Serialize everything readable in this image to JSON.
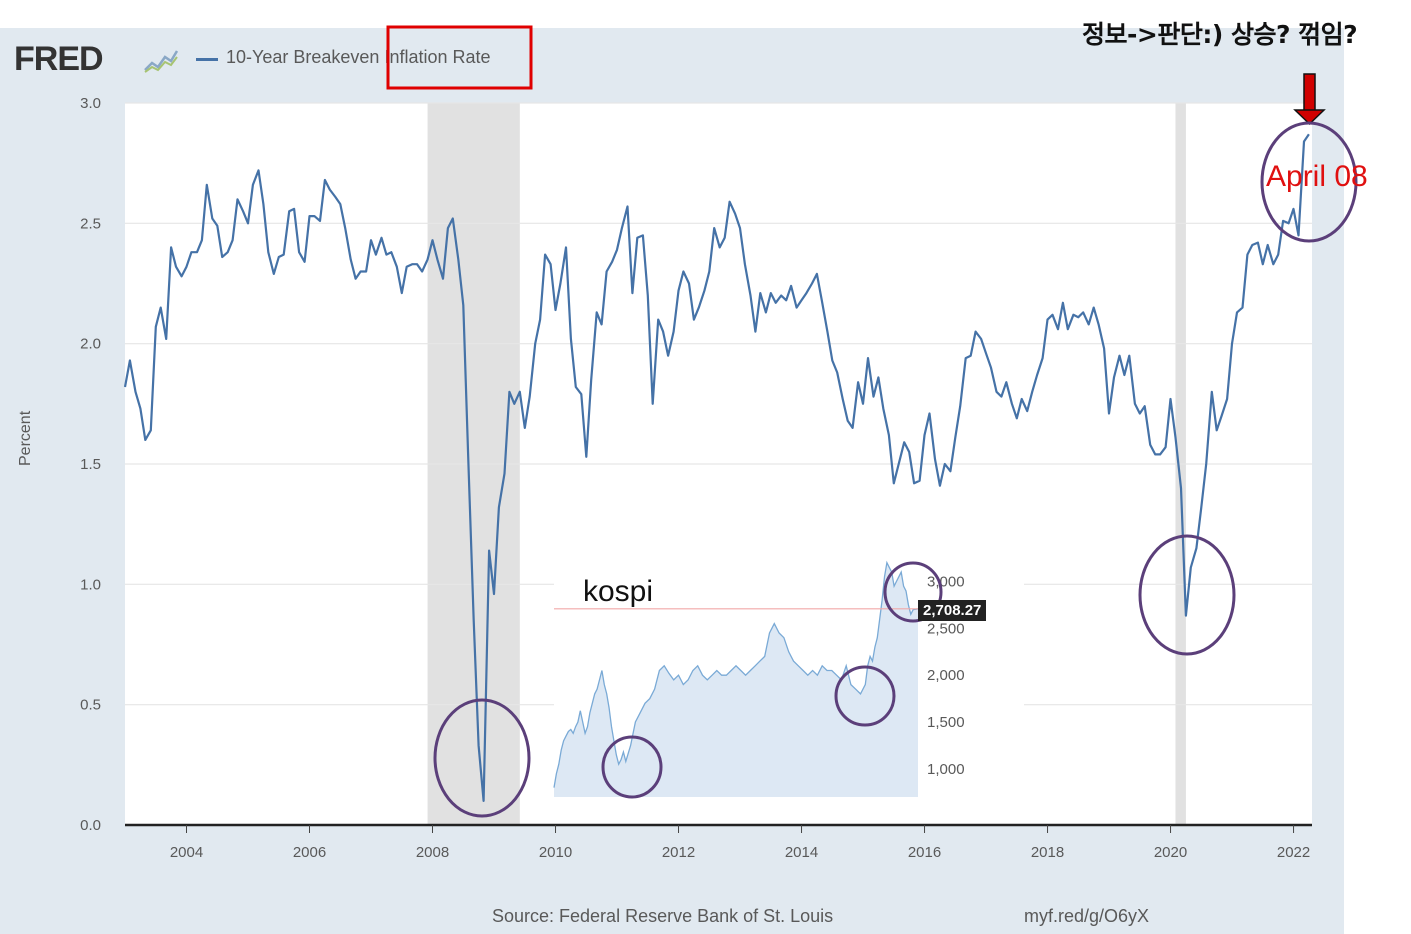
{
  "header": {
    "logo": "FRED",
    "legend_label": "10-Year Breakeven Inflation Rate"
  },
  "annotations": {
    "top_question": "정보->판단:) 상승? 꺾임?",
    "april_label": "April 08",
    "kospi_label": "kospi",
    "kospi_value": "2,708.27"
  },
  "footer": {
    "source": "Source: Federal Reserve Bank of St. Louis",
    "url": "myf.red/g/O6yX"
  },
  "colors": {
    "line": "#4572a7",
    "recession": "#e1e1e1",
    "highlight_box": "#e00000",
    "circles": "#5b3f7a",
    "arrow": "#d00000"
  },
  "chart_data": [
    {
      "type": "line",
      "xlabel": "",
      "ylabel": "Percent",
      "ylim": [
        0.0,
        3.0
      ],
      "xlim": [
        2003.0,
        2022.3
      ],
      "y_ticks": [
        "0.0",
        "0.5",
        "1.0",
        "1.5",
        "2.0",
        "2.5",
        "3.0"
      ],
      "x_ticks": [
        "2004",
        "2006",
        "2008",
        "2010",
        "2012",
        "2014",
        "2016",
        "2018",
        "2020",
        "2022"
      ],
      "recessions": [
        [
          2007.92,
          2009.42
        ],
        [
          2020.08,
          2020.25
        ]
      ],
      "grid": true,
      "series": [
        {
          "name": "10-Year Breakeven Inflation Rate",
          "x": [
            2003.0,
            2003.08,
            2003.17,
            2003.25,
            2003.33,
            2003.42,
            2003.5,
            2003.58,
            2003.67,
            2003.75,
            2003.83,
            2003.92,
            2004.0,
            2004.08,
            2004.17,
            2004.25,
            2004.33,
            2004.42,
            2004.5,
            2004.58,
            2004.67,
            2004.75,
            2004.83,
            2004.92,
            2005.0,
            2005.08,
            2005.17,
            2005.25,
            2005.33,
            2005.42,
            2005.5,
            2005.58,
            2005.67,
            2005.75,
            2005.83,
            2005.92,
            2006.0,
            2006.08,
            2006.17,
            2006.25,
            2006.33,
            2006.42,
            2006.5,
            2006.58,
            2006.67,
            2006.75,
            2006.83,
            2006.92,
            2007.0,
            2007.08,
            2007.17,
            2007.25,
            2007.33,
            2007.42,
            2007.5,
            2007.58,
            2007.67,
            2007.75,
            2007.83,
            2007.92,
            2008.0,
            2008.08,
            2008.17,
            2008.25,
            2008.33,
            2008.42,
            2008.5,
            2008.58,
            2008.67,
            2008.75,
            2008.83,
            2008.92,
            2009.0,
            2009.08,
            2009.17,
            2009.25,
            2009.33,
            2009.42,
            2009.5,
            2009.58,
            2009.67,
            2009.75,
            2009.83,
            2009.92,
            2010.0,
            2010.08,
            2010.17,
            2010.25,
            2010.33,
            2010.42,
            2010.5,
            2010.58,
            2010.67,
            2010.75,
            2010.83,
            2010.92,
            2011.0,
            2011.08,
            2011.17,
            2011.25,
            2011.33,
            2011.42,
            2011.5,
            2011.58,
            2011.67,
            2011.75,
            2011.83,
            2011.92,
            2012.0,
            2012.08,
            2012.17,
            2012.25,
            2012.33,
            2012.42,
            2012.5,
            2012.58,
            2012.67,
            2012.75,
            2012.83,
            2012.92,
            2013.0,
            2013.08,
            2013.17,
            2013.25,
            2013.33,
            2013.42,
            2013.5,
            2013.58,
            2013.67,
            2013.75,
            2013.83,
            2013.92,
            2014.0,
            2014.08,
            2014.17,
            2014.25,
            2014.33,
            2014.42,
            2014.5,
            2014.58,
            2014.67,
            2014.75,
            2014.83,
            2014.92,
            2015.0,
            2015.08,
            2015.17,
            2015.25,
            2015.33,
            2015.42,
            2015.5,
            2015.58,
            2015.67,
            2015.75,
            2015.83,
            2015.92,
            2016.0,
            2016.08,
            2016.17,
            2016.25,
            2016.33,
            2016.42,
            2016.5,
            2016.58,
            2016.67,
            2016.75,
            2016.83,
            2016.92,
            2017.0,
            2017.08,
            2017.17,
            2017.25,
            2017.33,
            2017.42,
            2017.5,
            2017.58,
            2017.67,
            2017.75,
            2017.83,
            2017.92,
            2018.0,
            2018.08,
            2018.17,
            2018.25,
            2018.33,
            2018.42,
            2018.5,
            2018.58,
            2018.67,
            2018.75,
            2018.83,
            2018.92,
            2019.0,
            2019.08,
            2019.17,
            2019.25,
            2019.33,
            2019.42,
            2019.5,
            2019.58,
            2019.67,
            2019.75,
            2019.83,
            2019.92,
            2020.0,
            2020.08,
            2020.17,
            2020.25,
            2020.33,
            2020.42,
            2020.5,
            2020.58,
            2020.67,
            2020.75,
            2020.83,
            2020.92,
            2021.0,
            2021.08,
            2021.17,
            2021.25,
            2021.33,
            2021.42,
            2021.5,
            2021.58,
            2021.67,
            2021.75,
            2021.83,
            2021.92,
            2022.0,
            2022.08,
            2022.17,
            2022.25
          ],
          "y": [
            1.82,
            1.93,
            1.8,
            1.73,
            1.6,
            1.64,
            2.07,
            2.15,
            2.02,
            2.4,
            2.32,
            2.28,
            2.32,
            2.38,
            2.38,
            2.43,
            2.66,
            2.52,
            2.49,
            2.36,
            2.38,
            2.43,
            2.6,
            2.55,
            2.5,
            2.66,
            2.72,
            2.58,
            2.38,
            2.29,
            2.36,
            2.37,
            2.55,
            2.56,
            2.38,
            2.34,
            2.53,
            2.53,
            2.51,
            2.68,
            2.64,
            2.61,
            2.58,
            2.48,
            2.35,
            2.27,
            2.3,
            2.3,
            2.43,
            2.37,
            2.44,
            2.37,
            2.38,
            2.32,
            2.21,
            2.32,
            2.33,
            2.33,
            2.3,
            2.35,
            2.43,
            2.35,
            2.27,
            2.48,
            2.52,
            2.35,
            2.16,
            1.53,
            0.85,
            0.33,
            0.1,
            1.14,
            0.96,
            1.32,
            1.46,
            1.8,
            1.75,
            1.8,
            1.65,
            1.78,
            2.0,
            2.1,
            2.37,
            2.33,
            2.14,
            2.25,
            2.4,
            2.02,
            1.82,
            1.79,
            1.53,
            1.85,
            2.13,
            2.08,
            2.3,
            2.34,
            2.39,
            2.48,
            2.57,
            2.21,
            2.44,
            2.45,
            2.2,
            1.75,
            2.1,
            2.05,
            1.95,
            2.05,
            2.22,
            2.3,
            2.25,
            2.1,
            2.15,
            2.22,
            2.3,
            2.48,
            2.4,
            2.44,
            2.59,
            2.54,
            2.48,
            2.33,
            2.2,
            2.05,
            2.21,
            2.13,
            2.21,
            2.17,
            2.2,
            2.18,
            2.24,
            2.15,
            2.18,
            2.21,
            2.25,
            2.29,
            2.18,
            2.05,
            1.93,
            1.88,
            1.77,
            1.68,
            1.65,
            1.84,
            1.75,
            1.94,
            1.78,
            1.86,
            1.73,
            1.62,
            1.42,
            1.5,
            1.59,
            1.55,
            1.42,
            1.43,
            1.62,
            1.71,
            1.52,
            1.41,
            1.5,
            1.47,
            1.61,
            1.74,
            1.94,
            1.95,
            2.05,
            2.02,
            1.96,
            1.9,
            1.8,
            1.78,
            1.84,
            1.75,
            1.69,
            1.77,
            1.72,
            1.8,
            1.87,
            1.94,
            2.1,
            2.12,
            2.06,
            2.17,
            2.06,
            2.12,
            2.11,
            2.13,
            2.08,
            2.15,
            2.08,
            1.98,
            1.71,
            1.86,
            1.95,
            1.87,
            1.95,
            1.75,
            1.71,
            1.74,
            1.58,
            1.54,
            1.54,
            1.57,
            1.77,
            1.61,
            1.4,
            0.87,
            1.07,
            1.15,
            1.32,
            1.5,
            1.8,
            1.64,
            1.7,
            1.77,
            2.0,
            2.13,
            2.15,
            2.37,
            2.41,
            2.42,
            2.33,
            2.41,
            2.33,
            2.37,
            2.51,
            2.5,
            2.56,
            2.45,
            2.84,
            2.87
          ]
        }
      ]
    },
    {
      "type": "area",
      "title": "kospi",
      "y_ticks": [
        "1,000",
        "1,500",
        "2,000",
        "2,500",
        "3,000"
      ],
      "ylim": [
        700,
        3400
      ],
      "current_value": 2708.27,
      "series": [
        {
          "x": [
            2007.0,
            2007.1,
            2007.2,
            2007.3,
            2007.4,
            2007.5,
            2007.6,
            2007.7,
            2007.8,
            2007.9,
            2008.0,
            2008.1,
            2008.2,
            2008.3,
            2008.4,
            2008.5,
            2008.6,
            2008.7,
            2008.8,
            2008.9,
            2009.0,
            2009.1,
            2009.2,
            2009.3,
            2009.4,
            2009.5,
            2009.6,
            2009.7,
            2009.8,
            2009.9,
            2010.0,
            2010.2,
            2010.4,
            2010.6,
            2010.8,
            2011.0,
            2011.2,
            2011.4,
            2011.6,
            2011.8,
            2012.0,
            2012.2,
            2012.4,
            2012.6,
            2012.8,
            2013.0,
            2013.2,
            2013.4,
            2013.6,
            2013.8,
            2014.0,
            2014.2,
            2014.4,
            2014.6,
            2014.8,
            2015.0,
            2015.2,
            2015.4,
            2015.6,
            2015.8,
            2016.0,
            2016.2,
            2016.4,
            2016.6,
            2016.8,
            2017.0,
            2017.2,
            2017.4,
            2017.6,
            2017.8,
            2018.0,
            2018.2,
            2018.4,
            2018.6,
            2018.8,
            2019.0,
            2019.2,
            2019.4,
            2019.6,
            2019.8,
            2020.0,
            2020.1,
            2020.2,
            2020.3,
            2020.4,
            2020.5,
            2020.6,
            2020.7,
            2020.8,
            2020.9,
            2021.0,
            2021.1,
            2021.2,
            2021.3,
            2021.4,
            2021.5,
            2021.6,
            2021.7,
            2021.8,
            2021.9,
            2022.0,
            2022.2
          ],
          "y": [
            800,
            950,
            1050,
            1200,
            1300,
            1350,
            1400,
            1420,
            1380,
            1450,
            1500,
            1620,
            1500,
            1380,
            1450,
            1600,
            1700,
            1800,
            1850,
            1950,
            2050,
            1900,
            1800,
            1650,
            1450,
            1300,
            1150,
            1050,
            1100,
            1180,
            1080,
            1250,
            1500,
            1600,
            1700,
            1750,
            1850,
            2050,
            2100,
            2020,
            1950,
            2000,
            1900,
            1950,
            2050,
            2100,
            2000,
            1950,
            2000,
            2050,
            2000,
            2000,
            2050,
            2100,
            2050,
            2000,
            2050,
            2100,
            2150,
            2200,
            2450,
            2550,
            2450,
            2400,
            2250,
            2150,
            2100,
            2050,
            2000,
            2050,
            2000,
            2100,
            2050,
            2050,
            2000,
            1950,
            2100,
            1900,
            1850,
            1800,
            1900,
            2100,
            2200,
            2150,
            2300,
            2400,
            2600,
            2800,
            3050,
            3200,
            3150,
            3100,
            2950,
            3000,
            3050,
            3100,
            2950,
            2900,
            2750,
            2650,
            2700,
            2708
          ]
        }
      ]
    }
  ]
}
